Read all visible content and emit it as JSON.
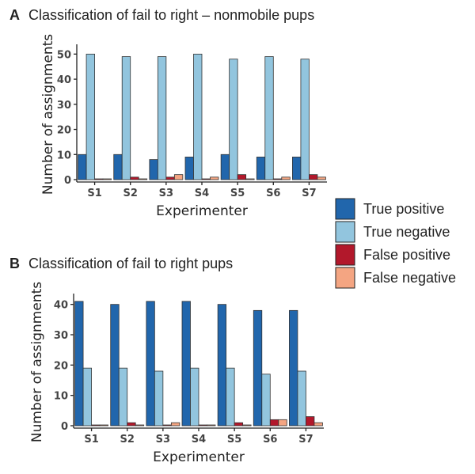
{
  "legend": [
    {
      "label": "True positive",
      "color": "#2166ac"
    },
    {
      "label": "True negative",
      "color": "#92c5de"
    },
    {
      "label": "False positive",
      "color": "#b2182b"
    },
    {
      "label": "False negative",
      "color": "#f4a582"
    }
  ],
  "chart_data": [
    {
      "type": "bar",
      "panel": "A",
      "title": "Classification of fail to right – nonmobile pups",
      "xlabel": "Experimenter",
      "ylabel": "Number of assignments",
      "ylim": [
        0,
        52
      ],
      "yticks": [
        0,
        10,
        20,
        30,
        40,
        50
      ],
      "categories": [
        "S1",
        "S2",
        "S3",
        "S4",
        "S5",
        "S6",
        "S7"
      ],
      "series": [
        {
          "name": "True positive",
          "values": [
            10,
            10,
            8,
            9,
            10,
            9,
            9
          ]
        },
        {
          "name": "True negative",
          "values": [
            50,
            49,
            49,
            50,
            48,
            49,
            48
          ]
        },
        {
          "name": "False positive",
          "values": [
            0,
            1,
            1,
            0,
            2,
            0,
            2
          ]
        },
        {
          "name": "False negative",
          "values": [
            0,
            0,
            2,
            1,
            0,
            1,
            1
          ]
        }
      ]
    },
    {
      "type": "bar",
      "panel": "B",
      "title": "Classification of fail to right pups",
      "xlabel": "Experimenter",
      "ylabel": "Number of assignments",
      "ylim": [
        0,
        42
      ],
      "yticks": [
        0,
        10,
        20,
        30,
        40
      ],
      "categories": [
        "S1",
        "S2",
        "S3",
        "S4",
        "S5",
        "S6",
        "S7"
      ],
      "series": [
        {
          "name": "True positive",
          "values": [
            41,
            40,
            41,
            41,
            40,
            38,
            38
          ]
        },
        {
          "name": "True negative",
          "values": [
            19,
            19,
            18,
            19,
            19,
            17,
            18
          ]
        },
        {
          "name": "False positive",
          "values": [
            0,
            1,
            0,
            0,
            1,
            2,
            3
          ]
        },
        {
          "name": "False negative",
          "values": [
            0,
            0,
            1,
            0,
            0,
            2,
            1
          ]
        }
      ]
    }
  ]
}
